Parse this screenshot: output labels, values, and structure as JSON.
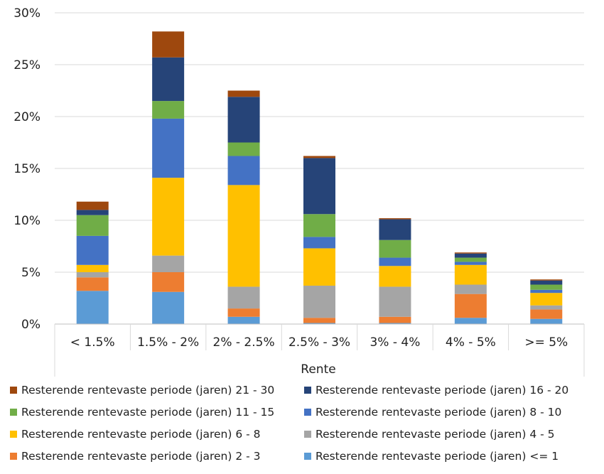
{
  "chart_data": {
    "type": "bar",
    "stacked": true,
    "xlabel": "Rente",
    "ylabel": "",
    "ylim": [
      0,
      30
    ],
    "yticks": [
      "0%",
      "5%",
      "10%",
      "15%",
      "20%",
      "25%",
      "30%"
    ],
    "categories": [
      "< 1.5%",
      "1.5% - 2%",
      "2% - 2.5%",
      "2.5% - 3%",
      "3% - 4%",
      "4% - 5%",
      ">= 5%"
    ],
    "series": [
      {
        "name": "Resterende rentevaste periode (jaren) <= 1",
        "color": "#5B9BD5",
        "values": [
          3.2,
          3.1,
          0.7,
          0.1,
          0.1,
          0.6,
          0.5
        ]
      },
      {
        "name": "Resterende rentevaste periode (jaren) 2 - 3",
        "color": "#ED7D31",
        "values": [
          1.3,
          1.9,
          0.8,
          0.5,
          0.6,
          2.3,
          0.9
        ]
      },
      {
        "name": "Resterende rentevaste periode (jaren) 4 - 5",
        "color": "#A5A5A5",
        "values": [
          0.5,
          1.6,
          2.1,
          3.1,
          2.9,
          0.9,
          0.4
        ]
      },
      {
        "name": "Resterende rentevaste periode (jaren) 6 - 8",
        "color": "#FFC000",
        "values": [
          0.7,
          7.5,
          9.8,
          3.6,
          2.0,
          1.9,
          1.2
        ]
      },
      {
        "name": "Resterende rentevaste periode (jaren) 8 - 10",
        "color": "#4472C4",
        "values": [
          2.8,
          5.7,
          2.8,
          1.1,
          0.8,
          0.3,
          0.3
        ]
      },
      {
        "name": "Resterende rentevaste periode (jaren) 11 - 15",
        "color": "#70AD47",
        "values": [
          2.0,
          1.7,
          1.3,
          2.2,
          1.7,
          0.4,
          0.5
        ]
      },
      {
        "name": "Resterende rentevaste periode (jaren) 16 - 20",
        "color": "#264478",
        "values": [
          0.5,
          4.2,
          4.4,
          5.4,
          2.0,
          0.4,
          0.4
        ]
      },
      {
        "name": "Resterende rentevaste periode (jaren) 21 - 30",
        "color": "#9E480E",
        "values": [
          0.8,
          2.5,
          0.6,
          0.2,
          0.1,
          0.1,
          0.1
        ]
      }
    ],
    "legend_position": "bottom",
    "legend_order": [
      7,
      6,
      5,
      4,
      3,
      2,
      1,
      0
    ],
    "grid": true
  }
}
